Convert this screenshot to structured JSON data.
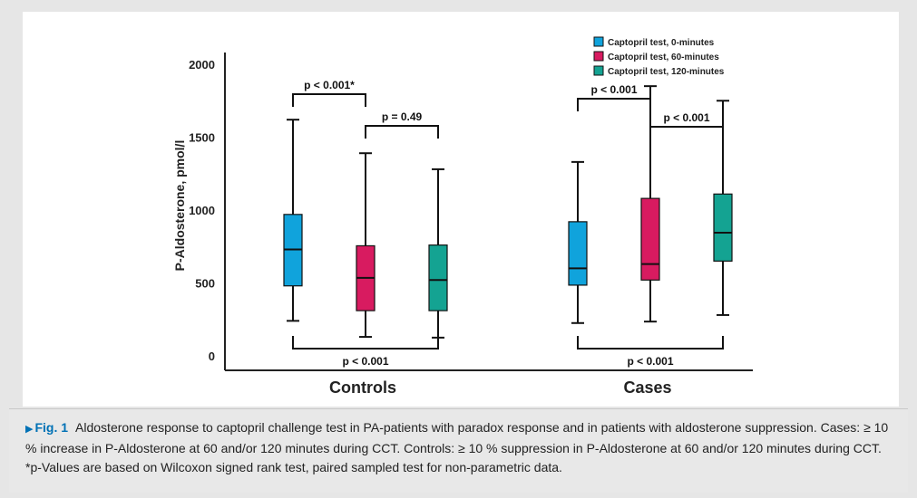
{
  "figure": {
    "label": "Fig. 1",
    "caption": "Aldosterone response to captopril challenge test in PA-patients with paradox response and in patients with aldosterone suppression. Cases: ≥ 10 % increase in P-Aldosterone at 60 and/or 120 minutes during CCT. Controls: ≥ 10 % suppression in P-Aldosterone at 60 and/or 120 minutes during CCT. *p-Values are based on Wilcoxon signed rank test, paired sampled test for non-parametric data."
  },
  "chart_data": {
    "type": "boxplot",
    "title": "",
    "xlabel": "",
    "ylabel": "P-Aldosterone, pmol/l",
    "ylim": [
      0,
      2000
    ],
    "yticks": [
      0,
      500,
      1000,
      1500,
      2000
    ],
    "groups": [
      "Controls",
      "Cases"
    ],
    "series": [
      {
        "name": "Captopril test, 0-minutes",
        "color": "#10a3dc",
        "values": [
          {
            "group": "Controls",
            "min": 240,
            "q1": 480,
            "median": 730,
            "q3": 970,
            "max": 1620
          },
          {
            "group": "Cases",
            "min": 225,
            "q1": 485,
            "median": 600,
            "q3": 920,
            "max": 1330
          }
        ]
      },
      {
        "name": "Captopril test, 60-minutes",
        "color": "#d81b60",
        "values": [
          {
            "group": "Controls",
            "min": 130,
            "q1": 310,
            "median": 535,
            "q3": 755,
            "max": 1390
          },
          {
            "group": "Cases",
            "min": 235,
            "q1": 520,
            "median": 630,
            "q3": 1080,
            "max": 1850
          }
        ]
      },
      {
        "name": "Captopril test, 120-minutes",
        "color": "#14a392",
        "values": [
          {
            "group": "Controls",
            "min": 125,
            "q1": 310,
            "median": 520,
            "q3": 760,
            "max": 1280
          },
          {
            "group": "Cases",
            "min": 280,
            "q1": 650,
            "median": 845,
            "q3": 1110,
            "max": 1750
          }
        ]
      }
    ],
    "annotations": [
      {
        "text": "p < 0.001*",
        "group": "Controls",
        "from": 0,
        "to": 1,
        "position": "above"
      },
      {
        "text": "p = 0.49",
        "group": "Controls",
        "from": 1,
        "to": 2,
        "position": "above"
      },
      {
        "text": "p < 0.001",
        "group": "Controls",
        "from": 0,
        "to": 2,
        "position": "below"
      },
      {
        "text": "p < 0.001",
        "group": "Cases",
        "from": 0,
        "to": 1,
        "position": "above"
      },
      {
        "text": "p < 0.001",
        "group": "Cases",
        "from": 1,
        "to": 2,
        "position": "above"
      },
      {
        "text": "p < 0.001",
        "group": "Cases",
        "from": 0,
        "to": 2,
        "position": "below"
      }
    ],
    "legend_position": "top-right"
  }
}
